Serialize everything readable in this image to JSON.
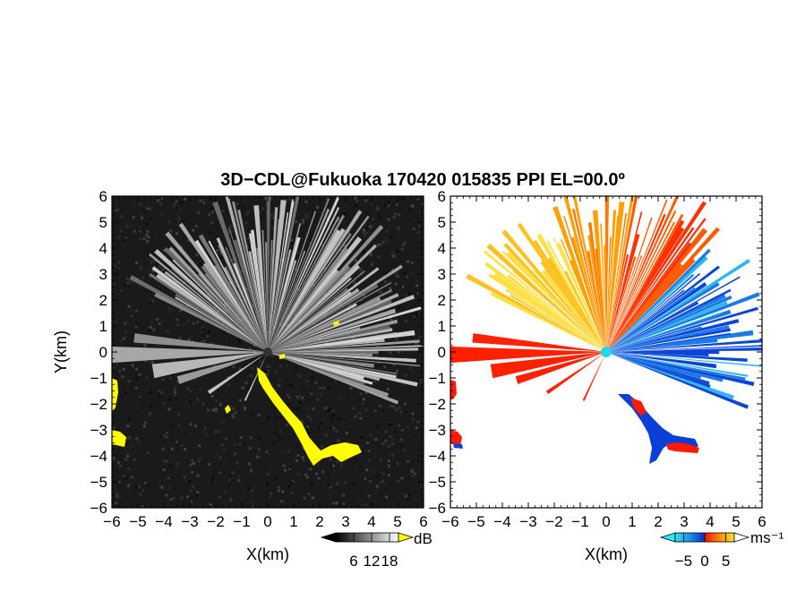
{
  "title": "3D−CDL@Fukuoka 170420 015835 PPI EL=00.0º",
  "colors": {
    "noise_dark": "#1a1a1a",
    "echo_white": "#f2f2f2",
    "clutter_yellow": "#ffff00",
    "vel_cyan": "#27d7ee",
    "vel_blue": "#0a50e0",
    "vel_red": "#ff1a00",
    "vel_orange": "#ff8800",
    "vel_yellow": "#ffee33",
    "radar_center": "#20d8f0"
  },
  "chart_data": [
    {
      "type": "heatmap",
      "name": "reflectivity",
      "xlabel": "X(km)",
      "ylabel": "Y(km)",
      "xlim": [
        -6,
        6
      ],
      "ylim": [
        -6,
        6
      ],
      "xticks": [
        "−6",
        "−5",
        "−4",
        "−3",
        "−2",
        "−1",
        "0",
        "1",
        "2",
        "3",
        "4",
        "5",
        "6"
      ],
      "yticks": [
        "6",
        "5",
        "4",
        "3",
        "2",
        "1",
        "0",
        "−1",
        "−2",
        "−3",
        "−4",
        "−5",
        "−6"
      ],
      "colorbar": {
        "ticks": [
          "6",
          "12",
          "18"
        ],
        "unit": "dB",
        "range": [
          0,
          21
        ]
      }
    },
    {
      "type": "heatmap",
      "name": "velocity",
      "xlabel": "X(km)",
      "xlim": [
        -6,
        6
      ],
      "ylim": [
        -6,
        6
      ],
      "xticks": [
        "−6",
        "−5",
        "−4",
        "−3",
        "−2",
        "−1",
        "0",
        "1",
        "2",
        "3",
        "4",
        "5",
        "6"
      ],
      "yticks": [
        "6",
        "5",
        "4",
        "3",
        "2",
        "1",
        "0",
        "−1",
        "−2",
        "−3",
        "−4",
        "−5",
        "−6"
      ],
      "colorbar": {
        "ticks": [
          "−5",
          "0",
          "5"
        ],
        "unit": "ms⁻¹",
        "range": [
          -7,
          7
        ]
      }
    }
  ]
}
